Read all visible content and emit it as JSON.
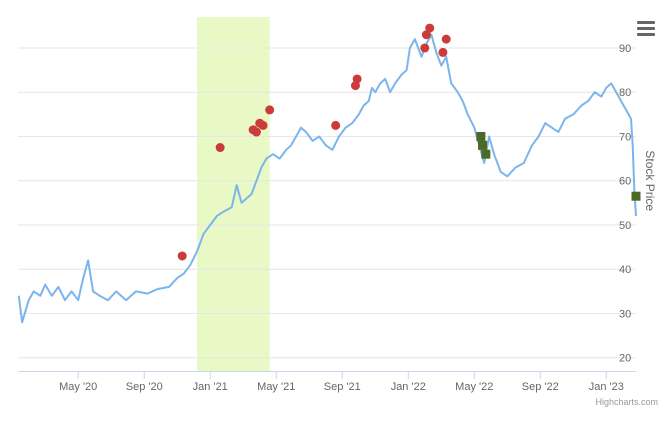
{
  "chart_data": {
    "type": "line",
    "title": "",
    "xlabel": "",
    "ylabel": "Stock Price",
    "ylim": [
      17,
      97
    ],
    "y_ticks": [
      20,
      30,
      40,
      50,
      60,
      70,
      80,
      90
    ],
    "x_ticks": [
      "May '20",
      "Sep '20",
      "Jan '21",
      "May '21",
      "Sep '21",
      "Jan '22",
      "May '22",
      "Sep '22",
      "Jan '23"
    ],
    "x_tick_months": [
      3,
      7,
      11,
      15,
      19,
      23,
      27,
      31,
      35
    ],
    "x_range_months": [
      -0.65,
      36.8
    ],
    "grid": true,
    "legend": "none",
    "colors": {
      "line": "#7cb5ec",
      "band": "#e9f9c6",
      "buy_marker": "#cc3b3b",
      "sell_marker": "#4a6b25",
      "grid": "#e6e6e6",
      "axis_text": "#666666"
    },
    "highlight_band": {
      "from_month": 10.2,
      "to_month": 14.6
    },
    "series": [
      {
        "values": [
          [
            -0.6,
            34
          ],
          [
            -0.4,
            28
          ],
          [
            0.0,
            33
          ],
          [
            0.3,
            35
          ],
          [
            0.7,
            34
          ],
          [
            1.0,
            36.5
          ],
          [
            1.4,
            34
          ],
          [
            1.8,
            36
          ],
          [
            2.2,
            33
          ],
          [
            2.6,
            35
          ],
          [
            3.0,
            33
          ],
          [
            3.3,
            38
          ],
          [
            3.6,
            42
          ],
          [
            3.9,
            35
          ],
          [
            4.3,
            34
          ],
          [
            4.8,
            33
          ],
          [
            5.3,
            35
          ],
          [
            5.9,
            33
          ],
          [
            6.5,
            35
          ],
          [
            7.2,
            34.5
          ],
          [
            7.8,
            35.5
          ],
          [
            8.5,
            36
          ],
          [
            9.0,
            38
          ],
          [
            9.4,
            39
          ],
          [
            9.8,
            41
          ],
          [
            10.2,
            44
          ],
          [
            10.6,
            48
          ],
          [
            11.0,
            50
          ],
          [
            11.4,
            52
          ],
          [
            11.8,
            53
          ],
          [
            12.3,
            54
          ],
          [
            12.6,
            59
          ],
          [
            12.9,
            55
          ],
          [
            13.2,
            56
          ],
          [
            13.5,
            57
          ],
          [
            13.8,
            60
          ],
          [
            14.1,
            63
          ],
          [
            14.4,
            65
          ],
          [
            14.8,
            66
          ],
          [
            15.2,
            65
          ],
          [
            15.6,
            67
          ],
          [
            15.9,
            68
          ],
          [
            16.2,
            70
          ],
          [
            16.5,
            72
          ],
          [
            16.8,
            71
          ],
          [
            17.2,
            69
          ],
          [
            17.6,
            70
          ],
          [
            18.0,
            68
          ],
          [
            18.4,
            67
          ],
          [
            18.8,
            70
          ],
          [
            19.2,
            72
          ],
          [
            19.6,
            73
          ],
          [
            20.0,
            75
          ],
          [
            20.3,
            77
          ],
          [
            20.6,
            78
          ],
          [
            20.8,
            81
          ],
          [
            21.0,
            80
          ],
          [
            21.3,
            82
          ],
          [
            21.6,
            83
          ],
          [
            21.9,
            80
          ],
          [
            22.2,
            82
          ],
          [
            22.6,
            84
          ],
          [
            22.9,
            85
          ],
          [
            23.1,
            90
          ],
          [
            23.4,
            92
          ],
          [
            23.8,
            88
          ],
          [
            24.1,
            91
          ],
          [
            24.4,
            93
          ],
          [
            24.7,
            89
          ],
          [
            25.0,
            86
          ],
          [
            25.3,
            88
          ],
          [
            25.6,
            82
          ],
          [
            26.0,
            80
          ],
          [
            26.3,
            78
          ],
          [
            26.6,
            75
          ],
          [
            27.0,
            72
          ],
          [
            27.3,
            68
          ],
          [
            27.6,
            64
          ],
          [
            27.9,
            70
          ],
          [
            28.2,
            66
          ],
          [
            28.6,
            62
          ],
          [
            29.0,
            61
          ],
          [
            29.5,
            63
          ],
          [
            30.0,
            64
          ],
          [
            30.5,
            68
          ],
          [
            30.9,
            70
          ],
          [
            31.3,
            73
          ],
          [
            31.7,
            72
          ],
          [
            32.1,
            71
          ],
          [
            32.5,
            74
          ],
          [
            33.0,
            75
          ],
          [
            33.5,
            77
          ],
          [
            33.9,
            78
          ],
          [
            34.3,
            80
          ],
          [
            34.7,
            79
          ],
          [
            35.0,
            81
          ],
          [
            35.3,
            82
          ],
          [
            35.6,
            80
          ],
          [
            35.9,
            78
          ],
          [
            36.2,
            76
          ],
          [
            36.5,
            74
          ],
          [
            36.6,
            68
          ],
          [
            36.7,
            58
          ],
          [
            36.8,
            52
          ]
        ]
      }
    ],
    "buy_markers": [
      [
        9.3,
        43
      ],
      [
        11.6,
        67.5
      ],
      [
        13.6,
        71.5
      ],
      [
        13.8,
        71
      ],
      [
        14.0,
        73
      ],
      [
        14.2,
        72.5
      ],
      [
        14.6,
        76
      ],
      [
        18.6,
        72.5
      ],
      [
        19.8,
        81.5
      ],
      [
        19.9,
        83
      ],
      [
        24.0,
        90
      ],
      [
        24.1,
        93
      ],
      [
        24.3,
        94.5
      ],
      [
        25.1,
        89
      ],
      [
        25.3,
        92
      ]
    ],
    "sell_markers": [
      [
        27.4,
        70
      ],
      [
        27.5,
        68
      ],
      [
        27.7,
        66
      ],
      [
        36.8,
        56.5
      ]
    ]
  },
  "credits": "Highcharts.com",
  "menu_icon": "hamburger-menu-icon"
}
